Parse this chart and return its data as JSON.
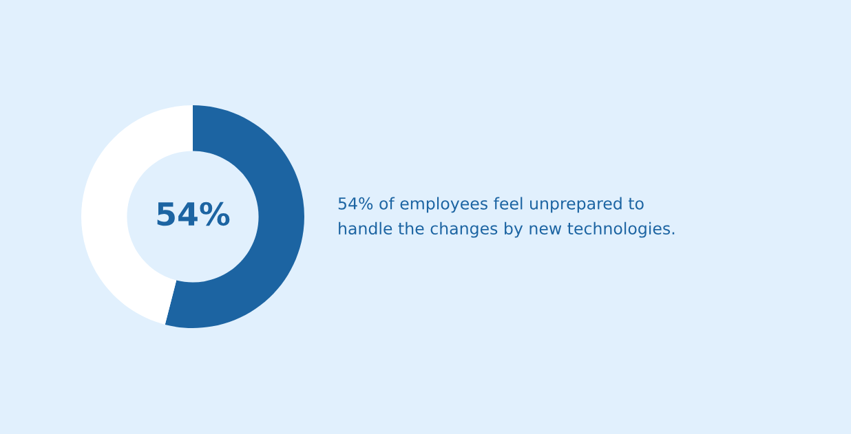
{
  "chart_data": {
    "type": "donut",
    "categories": [
      null,
      null
    ],
    "values": [
      54,
      46
    ],
    "colors": [
      "#1c64a2",
      "#ffffff"
    ],
    "value_labels": [
      "54%",
      null
    ],
    "annotations": [
      "54% of employees feel unprepared to\nhandle the changes by new technologies."
    ]
  }
}
